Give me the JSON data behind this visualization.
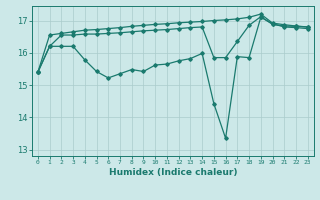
{
  "x": [
    0,
    1,
    2,
    3,
    4,
    5,
    6,
    7,
    8,
    9,
    10,
    11,
    12,
    13,
    14,
    15,
    16,
    17,
    18,
    19,
    20,
    21,
    22,
    23
  ],
  "line1_y": [
    15.4,
    16.55,
    16.6,
    16.65,
    16.7,
    16.72,
    16.75,
    16.78,
    16.82,
    16.85,
    16.88,
    16.9,
    16.93,
    16.95,
    16.97,
    17.0,
    17.02,
    17.05,
    17.1,
    17.2,
    16.92,
    16.87,
    16.83,
    16.8
  ],
  "line2_y": [
    15.4,
    16.2,
    16.55,
    16.55,
    16.58,
    16.58,
    16.6,
    16.62,
    16.65,
    16.68,
    16.7,
    16.72,
    16.75,
    16.78,
    16.8,
    15.85,
    15.85,
    16.35,
    16.85,
    17.12,
    16.88,
    16.83,
    16.82,
    16.8
  ],
  "line3_y": [
    15.4,
    16.2,
    16.2,
    16.2,
    15.78,
    15.42,
    15.22,
    15.35,
    15.48,
    15.42,
    15.62,
    15.65,
    15.75,
    15.82,
    15.98,
    14.42,
    13.35,
    15.88,
    15.85,
    17.1,
    16.9,
    16.8,
    16.78,
    16.75
  ],
  "ylim": [
    12.8,
    17.45
  ],
  "yticks": [
    13,
    14,
    15,
    16,
    17
  ],
  "xlim": [
    -0.5,
    23.5
  ],
  "bg_color": "#cce8e8",
  "line_color": "#1a7a6e",
  "grid_color": "#aacccc",
  "xlabel": "Humidex (Indice chaleur)"
}
